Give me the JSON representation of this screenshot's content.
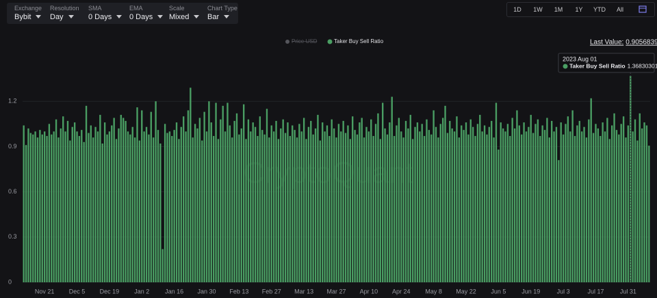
{
  "toolbar": {
    "controls": [
      {
        "label": "Exchange",
        "value": "Bybit"
      },
      {
        "label": "Resolution",
        "value": "Day"
      },
      {
        "label": "SMA",
        "value": "0 Days"
      },
      {
        "label": "EMA",
        "value": "0 Days"
      },
      {
        "label": "Scale",
        "value": "Mixed"
      },
      {
        "label": "Chart Type",
        "value": "Bar"
      }
    ],
    "ranges": [
      "1D",
      "1W",
      "1M",
      "1Y",
      "YTD",
      "All"
    ]
  },
  "chart_data": {
    "type": "bar",
    "watermark": "CryptoQuant",
    "inactive_legend_item": "Price USD",
    "last_value_label": "Last Value:",
    "tooltip": {
      "date": "2023 Aug 01",
      "index": 262
    },
    "categories": [
      null,
      null,
      null,
      null,
      null,
      null,
      null,
      null,
      null,
      "Nov 21",
      null,
      null,
      null,
      null,
      null,
      null,
      null,
      null,
      null,
      null,
      null,
      null,
      null,
      "Dec 5",
      null,
      null,
      null,
      null,
      null,
      null,
      null,
      null,
      null,
      null,
      null,
      null,
      null,
      "Dec 19",
      null,
      null,
      null,
      null,
      null,
      null,
      null,
      null,
      null,
      null,
      null,
      null,
      null,
      "Jan 2",
      null,
      null,
      null,
      null,
      null,
      null,
      null,
      null,
      null,
      null,
      null,
      null,
      null,
      "Jan 16",
      null,
      null,
      null,
      null,
      null,
      null,
      null,
      null,
      null,
      null,
      null,
      null,
      null,
      "Jan 30",
      null,
      null,
      null,
      null,
      null,
      null,
      null,
      null,
      null,
      null,
      null,
      null,
      null,
      "Feb 13",
      null,
      null,
      null,
      null,
      null,
      null,
      null,
      null,
      null,
      null,
      null,
      null,
      null,
      "Feb 27",
      null,
      null,
      null,
      null,
      null,
      null,
      null,
      null,
      null,
      null,
      null,
      null,
      null,
      "Mar 13",
      null,
      null,
      null,
      null,
      null,
      null,
      null,
      null,
      null,
      null,
      null,
      null,
      null,
      "Mar 27",
      null,
      null,
      null,
      null,
      null,
      null,
      null,
      null,
      null,
      null,
      null,
      null,
      null,
      "Apr 10",
      null,
      null,
      null,
      null,
      null,
      null,
      null,
      null,
      null,
      null,
      null,
      null,
      null,
      "Apr 24",
      null,
      null,
      null,
      null,
      null,
      null,
      null,
      null,
      null,
      null,
      null,
      null,
      null,
      "May 8",
      null,
      null,
      null,
      null,
      null,
      null,
      null,
      null,
      null,
      null,
      null,
      null,
      null,
      "May 22",
      null,
      null,
      null,
      null,
      null,
      null,
      null,
      null,
      null,
      null,
      null,
      null,
      null,
      "Jun 5",
      null,
      null,
      null,
      null,
      null,
      null,
      null,
      null,
      null,
      null,
      null,
      null,
      null,
      "Jun 19",
      null,
      null,
      null,
      null,
      null,
      null,
      null,
      null,
      null,
      null,
      null,
      null,
      null,
      "Jul 3",
      null,
      null,
      null,
      null,
      null,
      null,
      null,
      null,
      null,
      null,
      null,
      null,
      null,
      "Jul 17",
      null,
      null,
      null,
      null,
      null,
      null,
      null,
      null,
      null,
      null,
      null,
      null,
      null,
      "Jul 31",
      null,
      null,
      null,
      null,
      null,
      null,
      null,
      null,
      null
    ],
    "series": [
      {
        "name": "Taker Buy Sell Ratio",
        "color": "#4a9e63",
        "values": [
          1.04,
          0.91,
          1.02,
          0.99,
          0.98,
          1.0,
          0.96,
          1.01,
          0.98,
          1.0,
          0.97,
          1.05,
          0.98,
          1.0,
          1.08,
          0.96,
          1.02,
          1.1,
          1.0,
          1.07,
          0.94,
          1.03,
          1.06,
          1.0,
          0.97,
          1.01,
          0.93,
          1.17,
          0.99,
          1.04,
          0.96,
          1.03,
          1.0,
          1.11,
          0.92,
          1.06,
          0.98,
          1.0,
          1.04,
          1.09,
          0.95,
          1.02,
          1.11,
          1.09,
          1.07,
          1.0,
          0.98,
          1.03,
          0.96,
          1.16,
          0.94,
          1.14,
          1.0,
          1.03,
          0.98,
          1.13,
          0.96,
          1.2,
          1.01,
          0.92,
          0.22,
          1.05,
          0.99,
          1.0,
          0.97,
          1.01,
          1.06,
          0.95,
          1.03,
          1.1,
          1.0,
          1.14,
          1.29,
          0.96,
          1.05,
          1.02,
          1.09,
          0.94,
          1.13,
          1.0,
          1.2,
          1.06,
          0.97,
          1.19,
          0.95,
          1.08,
          1.17,
          1.0,
          1.19,
          1.04,
          0.96,
          1.07,
          1.12,
          0.98,
          1.02,
          1.18,
          0.95,
          1.08,
          1.0,
          1.06,
          1.03,
          0.97,
          1.1,
          1.01,
          0.98,
          1.15,
          0.96,
          1.04,
          1.0,
          1.07,
          0.95,
          1.02,
          1.08,
          0.99,
          1.06,
          0.97,
          1.04,
          1.01,
          0.96,
          1.05,
          1.0,
          1.09,
          0.95,
          1.03,
          1.07,
          0.98,
          1.02,
          1.11,
          0.94,
          1.06,
          1.0,
          1.04,
          0.97,
          1.08,
          1.02,
          0.96,
          1.05,
          1.0,
          1.07,
          0.99,
          1.04,
          0.95,
          1.1,
          1.01,
          0.98,
          1.06,
          1.09,
          0.96,
          1.03,
          1.0,
          1.08,
          0.97,
          1.05,
          1.12,
          0.95,
          1.19,
          1.02,
          0.98,
          1.06,
          1.23,
          0.97,
          1.04,
          1.09,
          1.0,
          0.96,
          1.07,
          1.02,
          1.11,
          0.95,
          1.03,
          1.06,
          1.0,
          1.05,
          0.97,
          1.08,
          1.01,
          0.98,
          1.14,
          1.03,
          0.96,
          1.05,
          1.09,
          1.17,
          0.99,
          1.07,
          1.02,
          1.0,
          1.1,
          0.96,
          1.04,
          1.01,
          1.06,
          0.98,
          1.08,
          1.03,
          0.97,
          1.05,
          1.11,
          1.0,
          1.04,
          0.98,
          1.03,
          1.07,
          0.96,
          1.19,
          0.88,
          1.06,
          1.02,
          1.0,
          1.05,
          0.97,
          1.09,
          1.02,
          1.14,
          1.04,
          0.98,
          1.06,
          1.0,
          1.03,
          1.11,
          0.99,
          1.05,
          1.08,
          0.97,
          1.04,
          1.01,
          1.09,
          0.96,
          1.07,
          1.0,
          1.03,
          0.81,
          1.06,
          0.98,
          1.05,
          1.1,
          1.0,
          1.14,
          0.97,
          1.04,
          1.07,
          1.0,
          1.03,
          0.96,
          1.08,
          1.22,
          0.99,
          1.05,
          1.02,
          0.97,
          1.06,
          1.0,
          1.09,
          0.95,
          1.04,
          1.12,
          1.01,
          0.98,
          1.05,
          1.1,
          0.96,
          1.04,
          1.36830301,
          1.0,
          1.08,
          0.94,
          1.12,
          1.02,
          1.06,
          1.04,
          0.90568397
        ]
      }
    ],
    "ylim": [
      0,
      1.5
    ],
    "yticks": [
      0,
      0.3,
      0.6,
      0.9,
      1.2
    ],
    "grid": true
  }
}
